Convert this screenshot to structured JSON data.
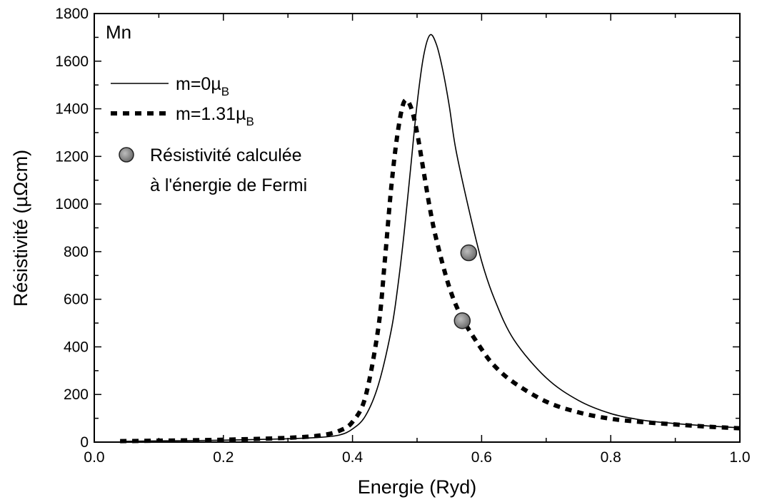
{
  "chart_data": {
    "type": "line",
    "panel_label": "Mn",
    "xlabel": "Energie (Ryd)",
    "ylabel": "Résistivité (µΩcm)",
    "xlim": [
      0.0,
      1.0
    ],
    "ylim": [
      0,
      1800
    ],
    "x_ticks": [
      0.0,
      0.2,
      0.4,
      0.6,
      0.8,
      1.0
    ],
    "x_tick_labels": [
      "0.0",
      "0.2",
      "0.4",
      "0.6",
      "0.8",
      "1.0"
    ],
    "y_ticks": [
      0,
      200,
      400,
      600,
      800,
      1000,
      1200,
      1400,
      1600,
      1800
    ],
    "y_tick_labels": [
      "0",
      "200",
      "400",
      "600",
      "800",
      "1000",
      "1200",
      "1400",
      "1600",
      "1800"
    ],
    "grid": false,
    "legend_position": "top-left",
    "series": [
      {
        "name": "m=0µB",
        "label_main": "m=0µ",
        "label_sub": "B",
        "style": "solid",
        "color": "#000000",
        "x": [
          0.04,
          0.1,
          0.2,
          0.3,
          0.35,
          0.38,
          0.4,
          0.42,
          0.44,
          0.46,
          0.47,
          0.48,
          0.49,
          0.5,
          0.51,
          0.52,
          0.53,
          0.54,
          0.55,
          0.56,
          0.58,
          0.6,
          0.62,
          0.65,
          0.7,
          0.75,
          0.8,
          0.85,
          0.9,
          0.95,
          1.0
        ],
        "values": [
          3,
          5,
          8,
          14,
          20,
          30,
          55,
          110,
          240,
          470,
          650,
          880,
          1150,
          1420,
          1620,
          1710,
          1670,
          1560,
          1410,
          1230,
          980,
          760,
          600,
          430,
          270,
          175,
          120,
          92,
          78,
          68,
          60
        ]
      },
      {
        "name": "m=1.31µB",
        "label_main": "m=1.31µ",
        "label_sub": "B",
        "style": "dotted",
        "color": "#000000",
        "x": [
          0.04,
          0.1,
          0.2,
          0.3,
          0.35,
          0.38,
          0.4,
          0.42,
          0.44,
          0.45,
          0.46,
          0.47,
          0.48,
          0.49,
          0.5,
          0.51,
          0.52,
          0.53,
          0.55,
          0.57,
          0.6,
          0.62,
          0.65,
          0.7,
          0.75,
          0.8,
          0.85,
          0.9,
          0.95,
          1.0
        ],
        "values": [
          4,
          6,
          10,
          18,
          28,
          48,
          85,
          190,
          480,
          760,
          1070,
          1300,
          1430,
          1410,
          1300,
          1140,
          980,
          850,
          650,
          520,
          390,
          320,
          250,
          170,
          125,
          98,
          84,
          74,
          65,
          58
        ]
      },
      {
        "name": "Résistivité calculée à l'énergie de Fermi",
        "label_lines": [
          "Résistivité calculée",
          "à l'énergie de Fermi"
        ],
        "style": "marker",
        "color": "#7a7a7a",
        "x": [
          0.58,
          0.57
        ],
        "values": [
          795,
          510
        ]
      }
    ]
  }
}
